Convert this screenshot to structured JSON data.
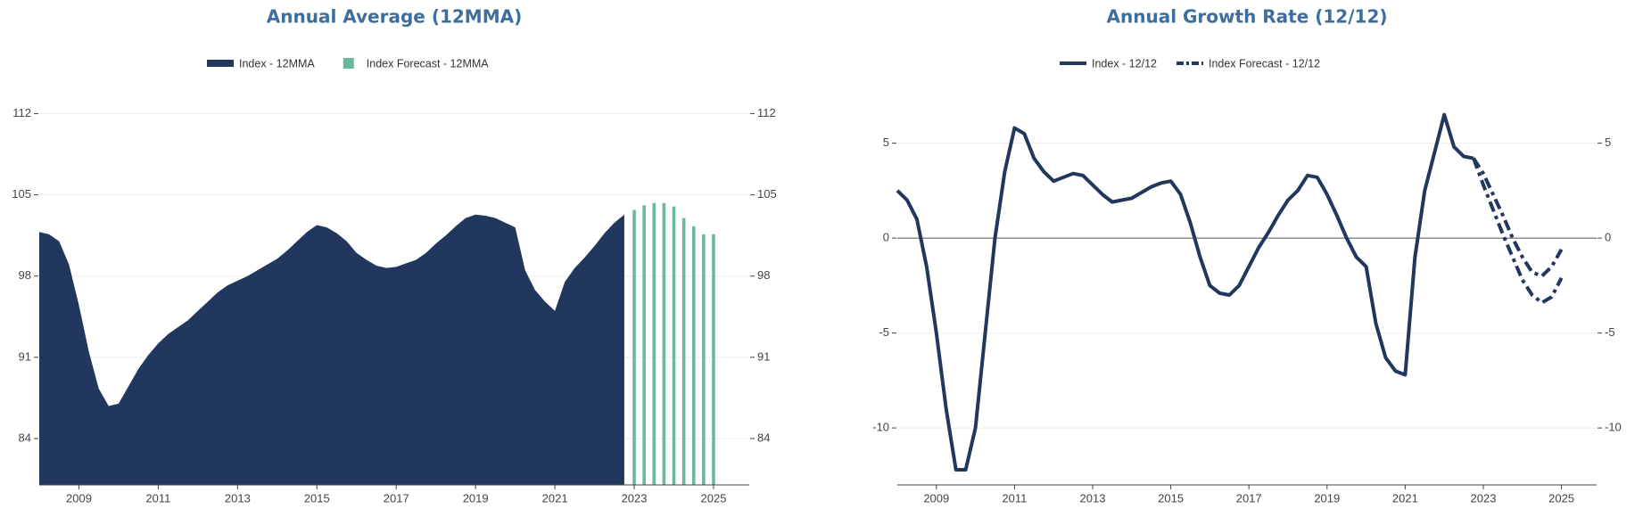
{
  "chart_data": [
    {
      "type": "combo",
      "title": "Annual Average (12MMA)",
      "xlim": [
        2008,
        2025.9
      ],
      "xticks": [
        2009,
        2011,
        2013,
        2015,
        2017,
        2019,
        2021,
        2023,
        2025
      ],
      "ylim": [
        80,
        113.5
      ],
      "yticks": [
        84,
        91,
        98,
        105,
        112
      ],
      "grid": true,
      "series": [
        {
          "name": "Index - 12MMA",
          "type": "area",
          "color": "#22375e",
          "x": [
            2008,
            2008.25,
            2008.5,
            2008.75,
            2009,
            2009.25,
            2009.5,
            2009.75,
            2010,
            2010.25,
            2010.5,
            2010.75,
            2011,
            2011.25,
            2011.5,
            2011.75,
            2012,
            2012.25,
            2012.5,
            2012.75,
            2013,
            2013.25,
            2013.5,
            2013.75,
            2014,
            2014.25,
            2014.5,
            2014.75,
            2015,
            2015.25,
            2015.5,
            2015.75,
            2016,
            2016.25,
            2016.5,
            2016.75,
            2017,
            2017.25,
            2017.5,
            2017.75,
            2018,
            2018.25,
            2018.5,
            2018.75,
            2019,
            2019.25,
            2019.5,
            2019.75,
            2020,
            2020.25,
            2020.5,
            2020.75,
            2021,
            2021.25,
            2021.5,
            2021.75,
            2022,
            2022.25,
            2022.5,
            2022.75
          ],
          "values": [
            101.8,
            101.6,
            101.0,
            99,
            95.5,
            91.5,
            88.3,
            86.8,
            87.0,
            88.5,
            90.0,
            91.2,
            92.2,
            93.0,
            93.6,
            94.2,
            95.0,
            95.8,
            96.6,
            97.2,
            97.6,
            98.0,
            98.5,
            99.0,
            99.5,
            100.2,
            101.0,
            101.8,
            102.4,
            102.2,
            101.7,
            101.0,
            100.0,
            99.4,
            98.9,
            98.7,
            98.8,
            99.1,
            99.4,
            100.0,
            100.8,
            101.5,
            102.3,
            103.0,
            103.3,
            103.2,
            103.0,
            102.6,
            102.2,
            98.5,
            96.8,
            95.8,
            95.0,
            97.5,
            98.7,
            99.6,
            100.6,
            101.7,
            102.6,
            103.3
          ]
        },
        {
          "name": "Index Forecast - 12MMA",
          "type": "bar",
          "color": "#6bb8a0",
          "x": [
            2023,
            2023.25,
            2023.5,
            2023.75,
            2024,
            2024.25,
            2024.5,
            2024.75,
            2025
          ],
          "values": [
            103.7,
            104.1,
            104.3,
            104.3,
            104.0,
            103.0,
            102.3,
            101.6,
            101.6
          ]
        }
      ]
    },
    {
      "type": "line",
      "title": "Annual Growth Rate (12/12)",
      "xlim": [
        2008,
        2025.9
      ],
      "xticks": [
        2009,
        2011,
        2013,
        2015,
        2017,
        2019,
        2021,
        2023,
        2025
      ],
      "ylim": [
        -13,
        7
      ],
      "yticks": [
        5,
        0,
        -5,
        -10
      ],
      "grid": true,
      "series": [
        {
          "name": "Index - 12/12",
          "type": "line",
          "color": "#22375e",
          "x": [
            2008,
            2008.25,
            2008.5,
            2008.75,
            2009,
            2009.25,
            2009.5,
            2009.75,
            2010,
            2010.25,
            2010.5,
            2010.75,
            2011,
            2011.25,
            2011.5,
            2011.75,
            2012,
            2012.25,
            2012.5,
            2012.75,
            2013,
            2013.25,
            2013.5,
            2013.75,
            2014,
            2014.25,
            2014.5,
            2014.75,
            2015,
            2015.25,
            2015.5,
            2015.75,
            2016,
            2016.25,
            2016.5,
            2016.75,
            2017,
            2017.25,
            2017.5,
            2017.75,
            2018,
            2018.25,
            2018.5,
            2018.75,
            2019,
            2019.25,
            2019.5,
            2019.75,
            2020,
            2020.25,
            2020.5,
            2020.75,
            2021,
            2021.25,
            2021.5,
            2021.75,
            2022,
            2022.25,
            2022.5,
            2022.75
          ],
          "values": [
            2.5,
            2.0,
            1.0,
            -1.5,
            -5,
            -9,
            -12.2,
            -12.2,
            -10,
            -5,
            0,
            3.5,
            5.8,
            5.5,
            4.2,
            3.5,
            3.0,
            3.2,
            3.4,
            3.3,
            2.8,
            2.3,
            1.9,
            2.0,
            2.1,
            2.4,
            2.7,
            2.9,
            3.0,
            2.3,
            0.8,
            -1,
            -2.5,
            -2.9,
            -3.0,
            -2.5,
            -1.5,
            -0.5,
            0.3,
            1.2,
            2.0,
            2.5,
            3.3,
            3.2,
            2.3,
            1.2,
            0,
            -1,
            -1.5,
            -4.5,
            -6.3,
            -7.0,
            -7.2,
            -1,
            2.5,
            4.5,
            6.5,
            4.8,
            4.3,
            4.2
          ]
        },
        {
          "name": "Index Forecast - 12/12",
          "type": "line",
          "dash": true,
          "color": "#22375e",
          "x": [
            2022.75,
            2023,
            2023.25,
            2023.5,
            2023.75,
            2024,
            2024.25,
            2024.5,
            2024.75,
            2025
          ],
          "values": [
            4.2,
            3.4,
            2.3,
            1.2,
            0,
            -1.0,
            -1.8,
            -2.0,
            -1.5,
            -0.6
          ]
        },
        {
          "type": "line",
          "dash": true,
          "color": "#22375e",
          "x": [
            2022.75,
            2023,
            2023.25,
            2023.5,
            2023.75,
            2024,
            2024.25,
            2024.5,
            2024.75,
            2025
          ],
          "values": [
            4.2,
            2.8,
            1.5,
            0.2,
            -1.0,
            -2.2,
            -3.0,
            -3.4,
            -3.1,
            -2.1
          ]
        }
      ]
    }
  ]
}
